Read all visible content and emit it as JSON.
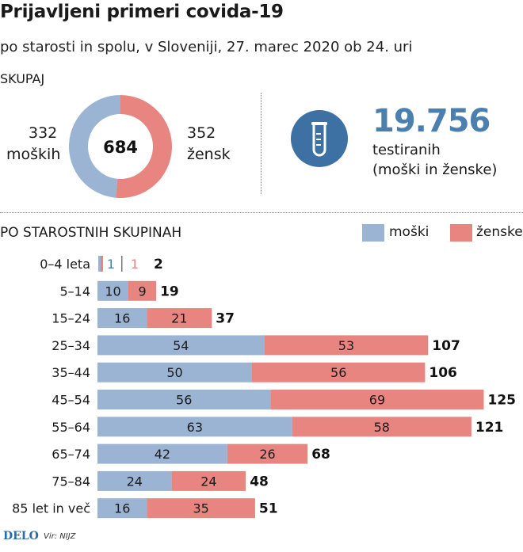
{
  "title": "Prijavljeni primeri covida-19",
  "subtitle": "po starosti in spolu, v Sloveniji, 27. marec 2020 ob 24. uri",
  "total_section": {
    "heading": "SKUPAJ",
    "male_value": "332",
    "male_label": "moških",
    "female_value": "352",
    "female_label": "žensk",
    "total": "684"
  },
  "testing": {
    "value": "19.756",
    "label": "testiranih",
    "sublabel": "(moški in ženske)",
    "icon": "test-tube-icon"
  },
  "age_section": {
    "heading": "PO STAROSTNIH SKUPINAH"
  },
  "legend": {
    "male": "moški",
    "female": "ženske"
  },
  "colors": {
    "male": "#9bb4d3",
    "female": "#e88580",
    "accent": "#4a7fb0",
    "icon_bg": "#3e71a3"
  },
  "chart_data": {
    "type": "bar",
    "stacked": true,
    "orientation": "horizontal",
    "categories": [
      "0–4 leta",
      "5–14",
      "15–24",
      "25–34",
      "35–44",
      "45–54",
      "55–64",
      "65–74",
      "75–84",
      "85 let in več"
    ],
    "series": [
      {
        "name": "moški",
        "values": [
          1,
          10,
          16,
          54,
          50,
          56,
          63,
          42,
          24,
          16
        ]
      },
      {
        "name": "ženske",
        "values": [
          1,
          9,
          21,
          53,
          56,
          69,
          58,
          26,
          24,
          35
        ]
      }
    ],
    "totals": [
      2,
      19,
      37,
      107,
      106,
      125,
      121,
      68,
      48,
      51
    ],
    "donut": {
      "male": 332,
      "female": 352,
      "total": 684
    }
  },
  "footer": {
    "logo": "DELO",
    "source": "Vir: NIJZ"
  }
}
